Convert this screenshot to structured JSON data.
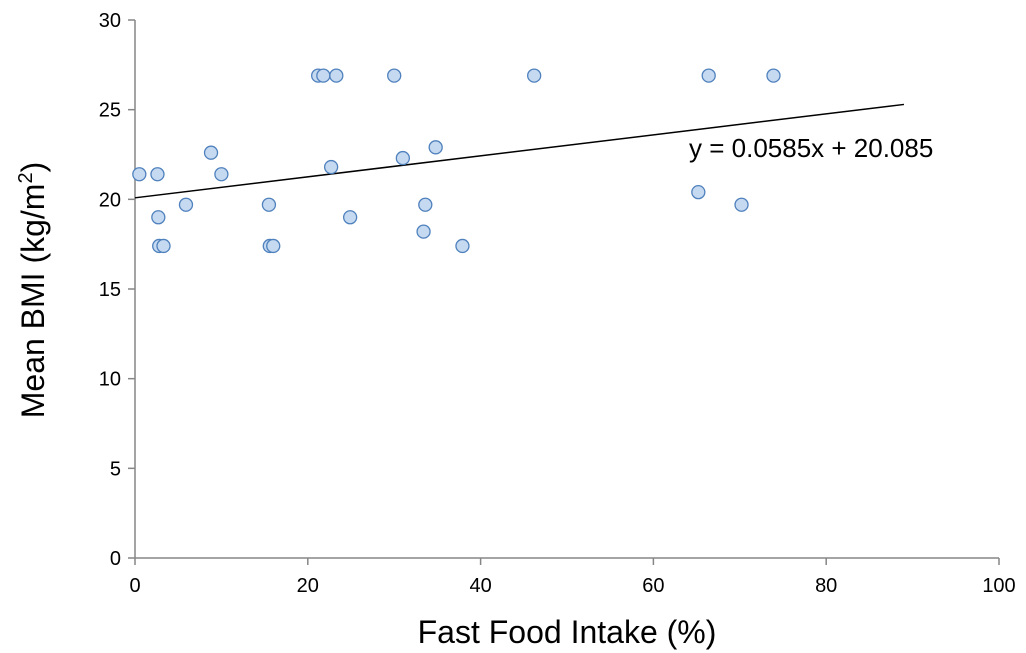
{
  "chart_data": {
    "type": "scatter",
    "title": "",
    "xlabel": "Fast Food Intake (%)",
    "ylabel_main": "Mean BMI (kg/m",
    "ylabel_sup": "2",
    "ylabel_close": ")",
    "xlim": [
      0,
      100
    ],
    "ylim": [
      0,
      30
    ],
    "x_ticks": [
      "0",
      "20",
      "40",
      "60",
      "80",
      "100"
    ],
    "y_ticks": [
      "0",
      "5",
      "10",
      "15",
      "20",
      "25",
      "30"
    ],
    "grid": false,
    "legend": "none",
    "colors": {
      "marker_fill": "#c5d9f1",
      "marker_stroke": "#4f81bd",
      "axis": "#868686",
      "trendline": "#000000"
    },
    "points": [
      {
        "x": 0.5,
        "y": 21.4
      },
      {
        "x": 2.6,
        "y": 21.4
      },
      {
        "x": 2.7,
        "y": 19.0
      },
      {
        "x": 2.8,
        "y": 17.4
      },
      {
        "x": 3.3,
        "y": 17.4
      },
      {
        "x": 5.9,
        "y": 19.7
      },
      {
        "x": 8.8,
        "y": 22.6
      },
      {
        "x": 10.0,
        "y": 21.4
      },
      {
        "x": 15.5,
        "y": 19.7
      },
      {
        "x": 15.6,
        "y": 17.4
      },
      {
        "x": 16.0,
        "y": 17.4
      },
      {
        "x": 21.2,
        "y": 26.9
      },
      {
        "x": 21.8,
        "y": 26.9
      },
      {
        "x": 22.7,
        "y": 21.8
      },
      {
        "x": 23.3,
        "y": 26.9
      },
      {
        "x": 24.9,
        "y": 19.0
      },
      {
        "x": 30.0,
        "y": 26.9
      },
      {
        "x": 31.0,
        "y": 22.3
      },
      {
        "x": 33.4,
        "y": 18.2
      },
      {
        "x": 33.6,
        "y": 19.7
      },
      {
        "x": 34.8,
        "y": 22.9
      },
      {
        "x": 37.9,
        "y": 17.4
      },
      {
        "x": 46.2,
        "y": 26.9
      },
      {
        "x": 65.2,
        "y": 20.4
      },
      {
        "x": 66.4,
        "y": 26.9
      },
      {
        "x": 70.2,
        "y": 19.7
      },
      {
        "x": 73.9,
        "y": 26.9
      }
    ],
    "trendline": {
      "slope": 0.0585,
      "intercept": 20.085,
      "x_range": [
        0,
        89
      ],
      "equation": "y = 0.0585x + 20.085"
    }
  }
}
